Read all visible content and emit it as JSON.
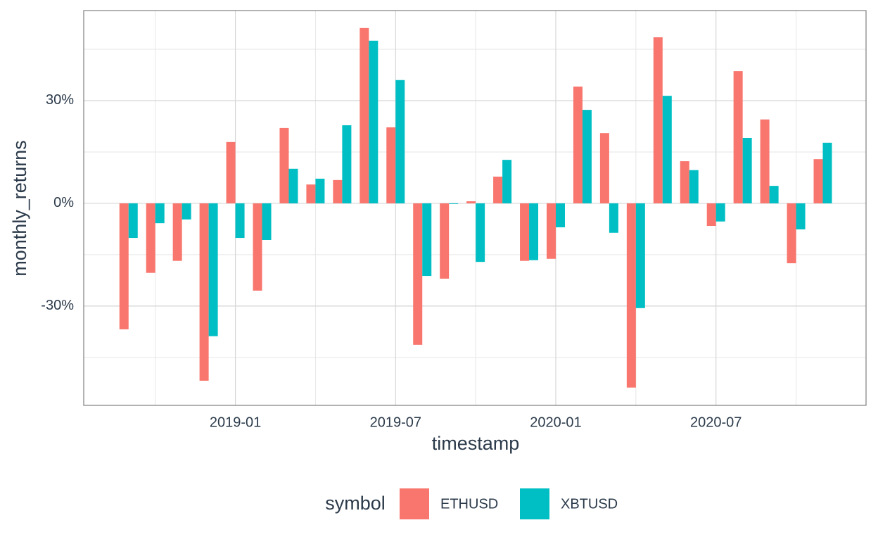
{
  "chart_data": {
    "type": "bar",
    "x_label": "timestamp",
    "y_label": "monthly_returns",
    "legend_title": "symbol",
    "legend_position": "bottom",
    "grid": true,
    "x": [
      "2018-09",
      "2018-10",
      "2018-11",
      "2018-12",
      "2019-01",
      "2019-02",
      "2019-03",
      "2019-04",
      "2019-05",
      "2019-06",
      "2019-07",
      "2019-08",
      "2019-09",
      "2019-10",
      "2019-11",
      "2019-12",
      "2020-01",
      "2020-02",
      "2020-03",
      "2020-04",
      "2020-05",
      "2020-06",
      "2020-07",
      "2020-08",
      "2020-09",
      "2020-10",
      "2020-11"
    ],
    "series": [
      {
        "name": "ETHUSD",
        "color": "#F8766D",
        "values": [
          -36.8,
          -20.3,
          -16.8,
          -51.8,
          17.9,
          -25.5,
          22.0,
          5.5,
          6.8,
          51.2,
          22.2,
          -41.3,
          -22.0,
          0.6,
          7.8,
          -16.8,
          -16.2,
          34.1,
          20.5,
          -53.8,
          48.5,
          12.3,
          -6.6,
          38.6,
          24.5,
          -17.5,
          12.9
        ]
      },
      {
        "name": "XBTUSD",
        "color": "#00BFC4",
        "values": [
          -10.1,
          -5.8,
          -4.7,
          -38.8,
          -10.1,
          -10.7,
          10.1,
          7.2,
          22.8,
          47.5,
          36.0,
          -21.2,
          -0.2,
          -17.1,
          12.7,
          -16.6,
          -7.0,
          27.3,
          -8.6,
          -30.6,
          31.4,
          9.7,
          -5.3,
          19.1,
          5.1,
          -7.6,
          17.7
        ]
      }
    ],
    "ylim": [
      -59,
      56.3
    ],
    "yticks": [
      {
        "value": -30,
        "label": "-30%"
      },
      {
        "value": 0,
        "label": "0%"
      },
      {
        "value": 30,
        "label": "30%"
      }
    ],
    "xticks": [
      "2019-01",
      "2019-07",
      "2020-01",
      "2020-07"
    ]
  }
}
